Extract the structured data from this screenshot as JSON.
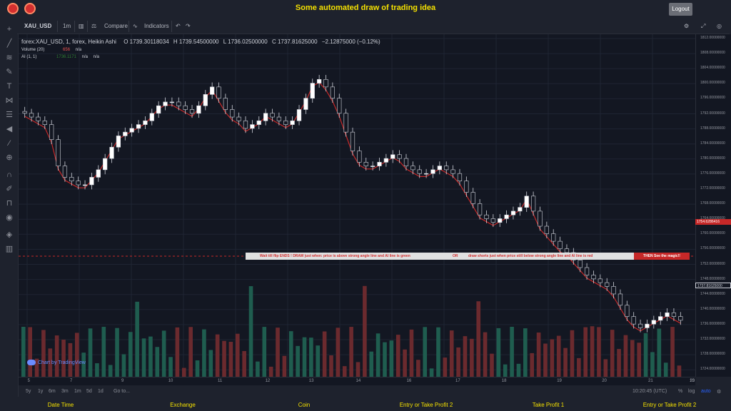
{
  "app_title": "Some automated draw of trading idea",
  "logout_label": "Logout",
  "toolbar": {
    "symbol": "XAU_USD",
    "interval": "1m",
    "compare": "Compare",
    "indicators": "Indicators"
  },
  "legend": {
    "main": "forex:XAU_USD, 1, forex, Heikin Ashi",
    "open": "O 1739.30118034",
    "high": "H 1739.54500000",
    "low": "L 1736.02500000",
    "close": "C 1737.81625000",
    "change": "−2.12875000 (−0.12%)",
    "volume_label": "Volume (20)",
    "volume_value": "656",
    "volume_ma": "n/a",
    "ai_label": "AI (1, 1)",
    "ai_value1": "1736.1171",
    "ai_value2": "n/a",
    "ai_value3": "n/a"
  },
  "signal_bar": {
    "part1": "Wait till flip ENDS  !   DRAW just when:  price is above strong angle line and AI line is green",
    "part2": "OR",
    "part3": "draw shorts just when price still below strong angle line and AI line is red",
    "cta": "THEN See the magic!!"
  },
  "price_axis": [
    "1812.00000000",
    "1808.00000000",
    "1804.00000000",
    "1800.00000000",
    "1796.00000000",
    "1792.00000000",
    "1788.00000000",
    "1784.00000000",
    "1780.00000000",
    "1776.00000000",
    "1772.00000000",
    "1768.00000000",
    "1764.00000000",
    "1760.00000000",
    "1756.00000000",
    "1752.00000000",
    "1748.00000000",
    "1744.00000000",
    "1740.00000000",
    "1736.00000000",
    "1732.00000000",
    "1728.00000000",
    "1724.00000000"
  ],
  "crosshair_price": "1754.6286416",
  "last_price": "1737.81625000",
  "time_axis": [
    "5",
    "7",
    "9",
    "10",
    "11",
    "12",
    "13",
    "14",
    "16",
    "17",
    "18",
    "19",
    "20",
    "21",
    "23",
    "10"
  ],
  "bottom": {
    "ranges": [
      "5y",
      "1y",
      "6m",
      "3m",
      "1m",
      "5d",
      "1d"
    ],
    "goto": "Go to...",
    "time": "10:20:45 (UTC)",
    "percent": "%",
    "log": "log",
    "auto": "auto"
  },
  "watermark": "Chart by TradingView",
  "footer": [
    "Date Time",
    "Exchange",
    "Coin",
    "Entry or Take Profit 2",
    "Take Profit 1",
    "Entry or Take Profit 2"
  ],
  "colors": {
    "up": "#26a69a",
    "down": "#ef5350",
    "ai_green": "#2e7d32",
    "ai_red": "#c62828",
    "accent": "#f5e100"
  },
  "chart_data": {
    "type": "candlestick",
    "title": "forex:XAU_USD, 1, forex, Heikin Ashi",
    "ylim": [
      1722,
      1813
    ],
    "closes": [
      1792,
      1791,
      1790,
      1789,
      1785,
      1778,
      1775,
      1774,
      1773,
      1773,
      1775,
      1777,
      1780,
      1783,
      1786,
      1787,
      1788,
      1789,
      1790,
      1792,
      1794,
      1795,
      1795,
      1794,
      1793,
      1792,
      1794,
      1797,
      1799,
      1796,
      1793,
      1791,
      1790,
      1788,
      1789,
      1790,
      1792,
      1791,
      1790,
      1789,
      1790,
      1793,
      1796,
      1800,
      1801,
      1799,
      1796,
      1792,
      1787,
      1782,
      1779,
      1778,
      1778,
      1779,
      1780,
      1781,
      1780,
      1778,
      1777,
      1776,
      1776,
      1777,
      1778,
      1777,
      1776,
      1774,
      1771,
      1768,
      1765,
      1764,
      1763,
      1764,
      1765,
      1766,
      1767,
      1770,
      1766,
      1762,
      1760,
      1758,
      1756,
      1755,
      1753,
      1751,
      1749,
      1748,
      1747,
      1746,
      1744,
      1741,
      1738,
      1736,
      1735,
      1736,
      1737,
      1738,
      1739,
      1738,
      1737
    ]
  }
}
